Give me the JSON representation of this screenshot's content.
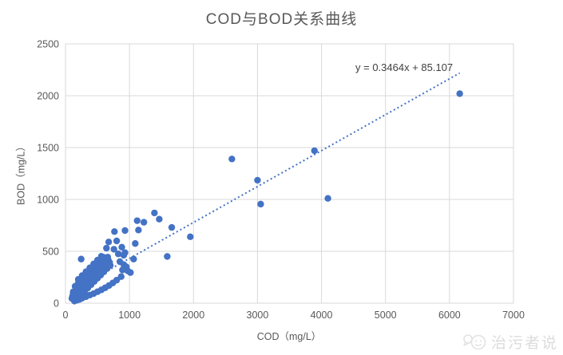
{
  "figure": {
    "title": "COD与BOD关系曲线",
    "equation_label": "y = 0.3464x + 85.107",
    "watermark_text": "治污者说"
  },
  "colors": {
    "point": "#4472C4",
    "trendline": "#4472C4",
    "grid": "#D9D9D9",
    "axis_text": "#595959",
    "title_text": "#595959",
    "equation_text": "#404040",
    "watermark": "#DCDCDC"
  },
  "chart_data": {
    "type": "scatter",
    "title": "COD与BOD关系曲线",
    "xlabel": "COD（mg/L）",
    "ylabel": "BOD（mg/L）",
    "xlim": [
      0,
      7000
    ],
    "ylim": [
      0,
      2500
    ],
    "xticks": [
      0,
      1000,
      2000,
      3000,
      4000,
      5000,
      6000,
      7000
    ],
    "yticks": [
      0,
      500,
      1000,
      1500,
      2000,
      2500
    ],
    "grid": true,
    "legend_position": "none",
    "trendline": {
      "type": "linear",
      "equation": "y = 0.3464x + 85.107",
      "slope": 0.3464,
      "intercept": 85.107,
      "x_range": [
        150,
        6160
      ],
      "style": "dotted"
    },
    "points": [
      [
        6160,
        2020
      ],
      [
        3890,
        1470
      ],
      [
        2600,
        1390
      ],
      [
        3000,
        1185
      ],
      [
        4100,
        1010
      ],
      [
        3050,
        955
      ],
      [
        1390,
        870
      ],
      [
        1465,
        810
      ],
      [
        1120,
        795
      ],
      [
        1225,
        780
      ],
      [
        1140,
        705
      ],
      [
        1660,
        730
      ],
      [
        1950,
        640
      ],
      [
        1590,
        450
      ],
      [
        1090,
        575
      ],
      [
        1065,
        425
      ],
      [
        765,
        690
      ],
      [
        930,
        700
      ],
      [
        675,
        590
      ],
      [
        800,
        600
      ],
      [
        880,
        540
      ],
      [
        757,
        520
      ],
      [
        640,
        530
      ],
      [
        910,
        462
      ],
      [
        930,
        487
      ],
      [
        825,
        475
      ],
      [
        850,
        400
      ],
      [
        910,
        372
      ],
      [
        950,
        350
      ],
      [
        975,
        310
      ],
      [
        1015,
        295
      ],
      [
        890,
        320
      ],
      [
        870,
        256
      ],
      [
        245,
        425
      ],
      [
        200,
        54
      ],
      [
        250,
        85
      ],
      [
        300,
        116
      ],
      [
        350,
        147
      ],
      [
        400,
        178
      ],
      [
        450,
        209
      ],
      [
        500,
        240
      ],
      [
        550,
        271
      ],
      [
        600,
        302
      ],
      [
        650,
        333
      ],
      [
        700,
        364
      ],
      [
        150,
        58
      ],
      [
        195,
        86
      ],
      [
        240,
        114
      ],
      [
        285,
        142
      ],
      [
        330,
        170
      ],
      [
        375,
        197
      ],
      [
        420,
        225
      ],
      [
        465,
        253
      ],
      [
        510,
        281
      ],
      [
        555,
        309
      ],
      [
        600,
        337
      ],
      [
        645,
        365
      ],
      [
        690,
        393
      ],
      [
        110,
        68
      ],
      [
        150,
        93
      ],
      [
        190,
        118
      ],
      [
        230,
        143
      ],
      [
        270,
        167
      ],
      [
        310,
        192
      ],
      [
        350,
        217
      ],
      [
        390,
        242
      ],
      [
        430,
        267
      ],
      [
        470,
        291
      ],
      [
        510,
        316
      ],
      [
        550,
        341
      ],
      [
        590,
        366
      ],
      [
        630,
        391
      ],
      [
        670,
        415
      ],
      [
        120,
        109
      ],
      [
        165,
        137
      ],
      [
        210,
        165
      ],
      [
        255,
        193
      ],
      [
        300,
        221
      ],
      [
        345,
        249
      ],
      [
        390,
        277
      ],
      [
        435,
        305
      ],
      [
        480,
        333
      ],
      [
        525,
        360
      ],
      [
        570,
        388
      ],
      [
        615,
        416
      ],
      [
        660,
        444
      ],
      [
        150,
        163
      ],
      [
        200,
        194
      ],
      [
        250,
        225
      ],
      [
        300,
        256
      ],
      [
        350,
        287
      ],
      [
        400,
        318
      ],
      [
        450,
        349
      ],
      [
        500,
        380
      ],
      [
        550,
        411
      ],
      [
        600,
        442
      ],
      [
        200,
        229
      ],
      [
        260,
        266
      ],
      [
        320,
        303
      ],
      [
        380,
        341
      ],
      [
        440,
        378
      ],
      [
        500,
        415
      ],
      [
        560,
        452
      ],
      [
        140,
        20
      ],
      [
        180,
        28
      ],
      [
        220,
        36
      ],
      [
        260,
        48
      ],
      [
        320,
        62
      ],
      [
        380,
        78
      ],
      [
        440,
        92
      ],
      [
        500,
        110
      ],
      [
        560,
        128
      ],
      [
        620,
        148
      ],
      [
        680,
        170
      ],
      [
        740,
        195
      ],
      [
        800,
        222
      ],
      [
        100,
        45
      ],
      [
        120,
        90
      ]
    ]
  }
}
